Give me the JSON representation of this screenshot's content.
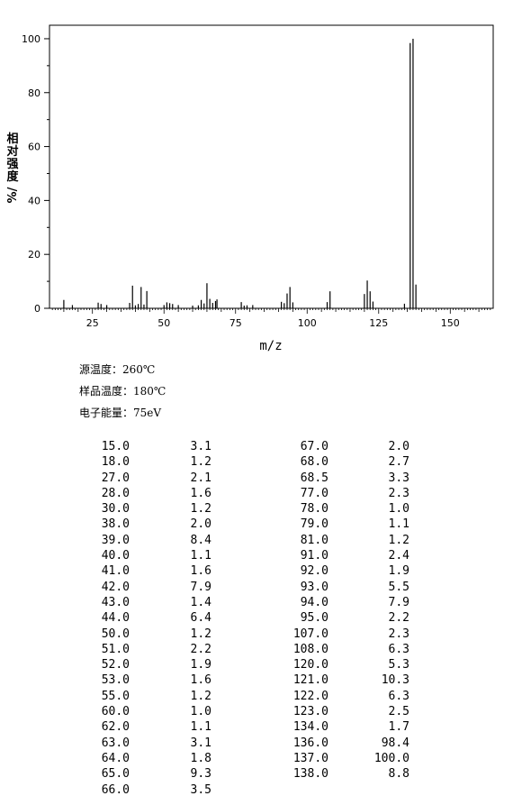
{
  "chart_data": {
    "type": "bar",
    "xlabel": "m/z",
    "ylabel": "相对强度/%",
    "xlim": [
      10,
      165
    ],
    "ylim": [
      0,
      105
    ],
    "xticks": [
      25,
      50,
      75,
      100,
      125,
      150
    ],
    "yticks": [
      0,
      20,
      40,
      60,
      80,
      100
    ],
    "x": [
      15.0,
      18.0,
      27.0,
      28.0,
      30.0,
      38.0,
      39.0,
      40.0,
      41.0,
      42.0,
      43.0,
      44.0,
      50.0,
      51.0,
      52.0,
      53.0,
      55.0,
      60.0,
      62.0,
      63.0,
      64.0,
      65.0,
      66.0,
      67.0,
      68.0,
      68.5,
      77.0,
      78.0,
      79.0,
      81.0,
      91.0,
      92.0,
      93.0,
      94.0,
      95.0,
      107.0,
      108.0,
      120.0,
      121.0,
      122.0,
      123.0,
      134.0,
      136.0,
      137.0,
      138.0
    ],
    "values": [
      3.1,
      1.2,
      2.1,
      1.6,
      1.2,
      2.0,
      8.4,
      1.1,
      1.6,
      7.9,
      1.4,
      6.4,
      1.2,
      2.2,
      1.9,
      1.6,
      1.2,
      1.0,
      1.1,
      3.1,
      1.8,
      9.3,
      3.5,
      2.0,
      2.7,
      3.3,
      2.3,
      1.0,
      1.1,
      1.2,
      2.4,
      1.9,
      5.5,
      7.9,
      2.2,
      2.3,
      6.3,
      5.3,
      10.3,
      6.3,
      2.5,
      1.7,
      98.4,
      100.0,
      8.8
    ]
  },
  "conditions": {
    "source_temp": "源温度：260℃",
    "sample_temp": "样品温度：180℃",
    "electron_energy": "电子能量：75eV"
  },
  "peak_table": {
    "left": [
      [
        "15.0",
        "3.1"
      ],
      [
        "18.0",
        "1.2"
      ],
      [
        "27.0",
        "2.1"
      ],
      [
        "28.0",
        "1.6"
      ],
      [
        "30.0",
        "1.2"
      ],
      [
        "38.0",
        "2.0"
      ],
      [
        "39.0",
        "8.4"
      ],
      [
        "40.0",
        "1.1"
      ],
      [
        "41.0",
        "1.6"
      ],
      [
        "42.0",
        "7.9"
      ],
      [
        "43.0",
        "1.4"
      ],
      [
        "44.0",
        "6.4"
      ],
      [
        "50.0",
        "1.2"
      ],
      [
        "51.0",
        "2.2"
      ],
      [
        "52.0",
        "1.9"
      ],
      [
        "53.0",
        "1.6"
      ],
      [
        "55.0",
        "1.2"
      ],
      [
        "60.0",
        "1.0"
      ],
      [
        "62.0",
        "1.1"
      ],
      [
        "63.0",
        "3.1"
      ],
      [
        "64.0",
        "1.8"
      ],
      [
        "65.0",
        "9.3"
      ],
      [
        "66.0",
        "3.5"
      ]
    ],
    "right": [
      [
        "67.0",
        "2.0"
      ],
      [
        "68.0",
        "2.7"
      ],
      [
        "68.5",
        "3.3"
      ],
      [
        "77.0",
        "2.3"
      ],
      [
        "78.0",
        "1.0"
      ],
      [
        "79.0",
        "1.1"
      ],
      [
        "81.0",
        "1.2"
      ],
      [
        "91.0",
        "2.4"
      ],
      [
        "92.0",
        "1.9"
      ],
      [
        "93.0",
        "5.5"
      ],
      [
        "94.0",
        "7.9"
      ],
      [
        "95.0",
        "2.2"
      ],
      [
        "107.0",
        "2.3"
      ],
      [
        "108.0",
        "6.3"
      ],
      [
        "120.0",
        "5.3"
      ],
      [
        "121.0",
        "10.3"
      ],
      [
        "122.0",
        "6.3"
      ],
      [
        "123.0",
        "2.5"
      ],
      [
        "134.0",
        "1.7"
      ],
      [
        "136.0",
        "98.4"
      ],
      [
        "137.0",
        "100.0"
      ],
      [
        "138.0",
        "8.8"
      ]
    ]
  }
}
